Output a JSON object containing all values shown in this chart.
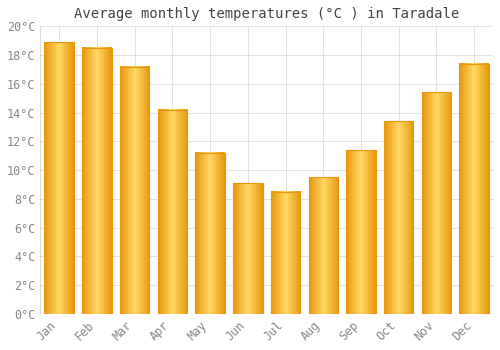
{
  "title": "Average monthly temperatures (°C ) in Taradale",
  "months": [
    "Jan",
    "Feb",
    "Mar",
    "Apr",
    "May",
    "Jun",
    "Jul",
    "Aug",
    "Sep",
    "Oct",
    "Nov",
    "Dec"
  ],
  "temperatures": [
    18.9,
    18.5,
    17.2,
    14.2,
    11.2,
    9.1,
    8.5,
    9.5,
    11.4,
    13.4,
    15.4,
    17.4
  ],
  "bar_color_center": "#FFD966",
  "bar_color_edge": "#E8960C",
  "background_color": "#FFFFFF",
  "grid_color": "#DDDDDD",
  "ylim": [
    0,
    20
  ],
  "ytick_step": 2,
  "title_fontsize": 10,
  "tick_fontsize": 8.5,
  "tick_font_family": "monospace",
  "tick_color": "#888888"
}
